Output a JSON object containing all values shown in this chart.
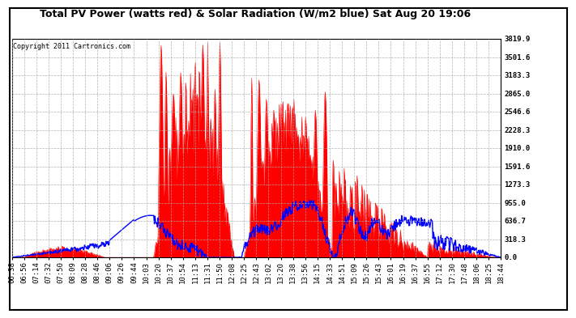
{
  "title": "Total PV Power (watts red) & Solar Radiation (W/m2 blue) Sat Aug 20 19:06",
  "copyright": "Copyright 2011 Cartronics.com",
  "y_ticks": [
    0.0,
    318.3,
    636.7,
    955.0,
    1273.3,
    1591.6,
    1910.0,
    2228.3,
    2546.6,
    2865.0,
    3183.3,
    3501.6,
    3819.9
  ],
  "ymax": 3819.9,
  "ymin": 0.0,
  "x_labels": [
    "06:38",
    "06:56",
    "07:14",
    "07:32",
    "07:50",
    "08:09",
    "08:28",
    "08:46",
    "09:06",
    "09:26",
    "09:44",
    "10:03",
    "10:20",
    "10:37",
    "10:54",
    "11:13",
    "11:31",
    "11:50",
    "12:08",
    "12:25",
    "12:43",
    "13:02",
    "13:20",
    "13:38",
    "13:56",
    "14:15",
    "14:33",
    "14:51",
    "15:09",
    "15:26",
    "15:43",
    "16:01",
    "16:19",
    "16:37",
    "16:55",
    "17:12",
    "17:30",
    "17:48",
    "18:06",
    "18:25",
    "18:44"
  ],
  "bg_color": "#ffffff",
  "plot_bg_color": "#ffffff",
  "grid_color": "#aaaaaa",
  "red_color": "#ff0000",
  "blue_color": "#0000ff",
  "title_fontsize": 9,
  "tick_fontsize": 6.5,
  "copyright_fontsize": 6
}
